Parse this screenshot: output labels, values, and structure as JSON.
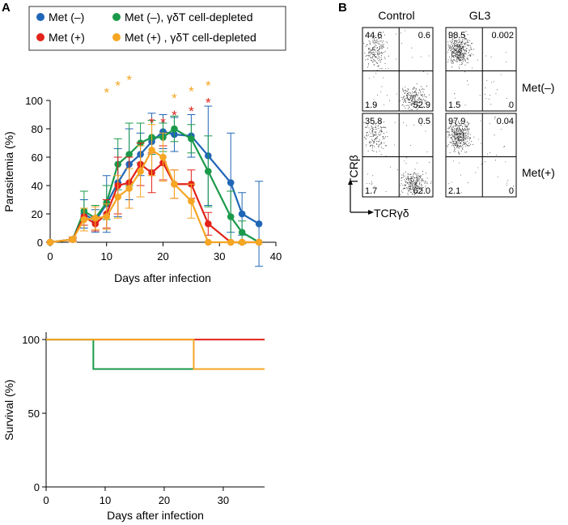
{
  "panel_labels": {
    "a": "A",
    "b": "B"
  },
  "colors": {
    "met_neg": "#2066b6",
    "met_pos": "#e2231a",
    "met_neg_depleted": "#1a9a4a",
    "met_pos_depleted": "#f5a623"
  },
  "chart_data": [
    {
      "type": "line",
      "title": "",
      "xlabel": "Days after infection",
      "ylabel": "Parasitemia (%)",
      "xlim": [
        0,
        40
      ],
      "ylim": [
        0,
        100
      ],
      "xticks": [
        0,
        10,
        20,
        30,
        40
      ],
      "yticks": [
        0,
        20,
        40,
        60,
        80,
        100
      ],
      "legend": {
        "position": "top",
        "entries": [
          "Met (–)",
          "Met (–), γδT cell-depleted",
          "Met (+)",
          "Met (+) , γδT cell-depleted"
        ]
      },
      "series": [
        {
          "name": "Met (–)",
          "color": "#2066b6",
          "x": [
            0,
            4,
            6,
            8,
            10,
            12,
            14,
            16,
            18,
            20,
            22,
            25,
            28,
            32,
            34,
            37
          ],
          "y": [
            0,
            2,
            20,
            15,
            27,
            42,
            55,
            62,
            71,
            78,
            76,
            75,
            61,
            42,
            20,
            13
          ],
          "err": [
            0,
            2,
            10,
            8,
            20,
            24,
            25,
            15,
            20,
            12,
            12,
            15,
            35,
            35,
            15,
            30
          ]
        },
        {
          "name": "Met (–), γδT cell-depleted",
          "color": "#1a9a4a",
          "x": [
            0,
            4,
            6,
            8,
            10,
            12,
            14,
            16,
            18,
            20,
            22,
            25,
            28,
            32,
            34,
            37
          ],
          "y": [
            0,
            2,
            22,
            17,
            28,
            55,
            62,
            70,
            74,
            74,
            80,
            73,
            50,
            18,
            7,
            0
          ],
          "err": [
            0,
            2,
            14,
            9,
            12,
            18,
            22,
            14,
            12,
            10,
            9,
            10,
            25,
            18,
            8,
            0
          ]
        },
        {
          "name": "Met (+)",
          "color": "#e2231a",
          "x": [
            0,
            4,
            6,
            8,
            10,
            12,
            14,
            16,
            18,
            20,
            22,
            25,
            28,
            32,
            34,
            37
          ],
          "y": [
            0,
            2,
            18,
            13,
            20,
            40,
            42,
            55,
            49,
            56,
            41,
            41,
            13,
            0,
            0,
            0
          ],
          "err": [
            0,
            1,
            6,
            5,
            10,
            20,
            18,
            15,
            14,
            12,
            10,
            10,
            8,
            0,
            0,
            0
          ]
        },
        {
          "name": "Met (+) , γδT cell-depleted",
          "color": "#f5a623",
          "x": [
            0,
            4,
            6,
            8,
            10,
            12,
            14,
            16,
            18,
            20,
            22,
            25,
            28,
            32,
            34,
            37
          ],
          "y": [
            0,
            2,
            16,
            17,
            18,
            32,
            38,
            50,
            65,
            60,
            41,
            29,
            0,
            0,
            0,
            0
          ],
          "err": [
            0,
            2,
            8,
            8,
            9,
            15,
            14,
            18,
            18,
            17,
            10,
            12,
            0,
            0,
            0,
            0
          ]
        }
      ],
      "annotations": [
        {
          "text": "*",
          "x": 10,
          "y": 108,
          "color": "#f5a623"
        },
        {
          "text": "*",
          "x": 12,
          "y": 113,
          "color": "#f5a623"
        },
        {
          "text": "*",
          "x": 14,
          "y": 117,
          "color": "#f5a623"
        },
        {
          "text": "*",
          "x": 18,
          "y": 87,
          "color": "#e2231a"
        },
        {
          "text": "*",
          "x": 20,
          "y": 87,
          "color": "#e2231a"
        },
        {
          "text": "*",
          "x": 22,
          "y": 92,
          "color": "#e2231a"
        },
        {
          "text": "*",
          "x": 25,
          "y": 95,
          "color": "#e2231a"
        },
        {
          "text": "*",
          "x": 28,
          "y": 101,
          "color": "#e2231a"
        },
        {
          "text": "*",
          "x": 22,
          "y": 104,
          "color": "#f5a623"
        },
        {
          "text": "*",
          "x": 25,
          "y": 109,
          "color": "#f5a623"
        },
        {
          "text": "*",
          "x": 28,
          "y": 113,
          "color": "#f5a623"
        }
      ]
    },
    {
      "type": "line",
      "title": "",
      "xlabel": "Days after infection",
      "ylabel": "Survival  (%)",
      "xlim": [
        0,
        37
      ],
      "ylim": [
        0,
        105
      ],
      "xticks": [
        0,
        10,
        20,
        30
      ],
      "yticks": [
        0,
        50,
        100
      ],
      "step": true,
      "series": [
        {
          "name": "Met (+)",
          "color": "#e2231a",
          "x": [
            0,
            37
          ],
          "y": [
            100,
            100
          ]
        },
        {
          "name": "Met (–), γδT cell-depleted",
          "color": "#1a9a4a",
          "x": [
            0,
            8,
            25
          ],
          "y": [
            100,
            80,
            80
          ]
        },
        {
          "name": "Met (+) , γδT cell-depleted",
          "color": "#f5a623",
          "x": [
            0,
            25,
            37
          ],
          "y": [
            100,
            80,
            80
          ]
        }
      ]
    }
  ],
  "flow": {
    "columns": [
      "Control",
      "GL3"
    ],
    "rows": [
      "Met(–)",
      "Met(+)"
    ],
    "y_axis_label": "TCRβ",
    "x_axis_label": "TCRγδ",
    "plots": [
      {
        "row": 0,
        "col": 0,
        "q": [
          "44.6",
          "0.6",
          "1.9",
          "52.9"
        ]
      },
      {
        "row": 0,
        "col": 1,
        "q": [
          "98.5",
          "0.002",
          "1.5",
          "0"
        ]
      },
      {
        "row": 1,
        "col": 0,
        "q": [
          "35.8",
          "0.5",
          "1.7",
          "62.0"
        ]
      },
      {
        "row": 1,
        "col": 1,
        "q": [
          "97.9",
          "0.04",
          "2.1",
          "0"
        ]
      }
    ]
  }
}
